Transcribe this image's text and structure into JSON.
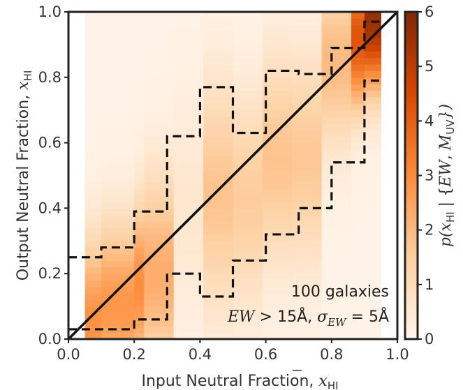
{
  "chart_data": {
    "type": "heatmap",
    "xlabel": {
      "text": "Input Neutral Fraction, ",
      "symbol": "x",
      "subscript": "HI"
    },
    "ylabel": {
      "text": "Output Neutral Fraction, ",
      "symbol": "x",
      "subscript": "HI"
    },
    "colorbar_label": {
      "prefix": "p(",
      "symbol": "x",
      "subscript": "HI",
      "mid": " | {",
      "ew": "EW",
      "comma": ", ",
      "m": "M",
      "msub": "UV",
      "suffix": "})"
    },
    "xlim": [
      0.0,
      1.0
    ],
    "ylim": [
      0.0,
      1.0
    ],
    "clim": [
      0,
      6
    ],
    "x_ticks": [
      "0.0",
      "0.2",
      "0.4",
      "0.6",
      "0.8",
      "1.0"
    ],
    "y_ticks": [
      "0.0",
      "0.2",
      "0.4",
      "0.6",
      "0.8",
      "1.0"
    ],
    "colorbar_ticks": [
      "0",
      "1",
      "2",
      "3",
      "4",
      "5",
      "6"
    ],
    "colormap": [
      "#fff5eb",
      "#fdd0a2",
      "#fd8d3c",
      "#d94801",
      "#7f2704"
    ],
    "annotation_galaxies": "100 galaxies",
    "annotation_condition": {
      "ew": "EW",
      "gt": " > 15Å, ",
      "sigma": "σ",
      "sigsub": "EW",
      "eq": " = 5Å"
    },
    "columns": [
      {
        "x0": 0.05,
        "x1": 0.1,
        "peak": 0.05,
        "width": 0.18,
        "amp": 2.8
      },
      {
        "x0": 0.1,
        "x1": 0.2,
        "peak": 0.1,
        "width": 0.18,
        "amp": 2.7
      },
      {
        "x0": 0.2,
        "x1": 0.23,
        "peak": 0.16,
        "width": 0.18,
        "amp": 2.9
      },
      {
        "x0": 0.23,
        "x1": 0.32,
        "peak": 0.2,
        "width": 0.21,
        "amp": 2.2
      },
      {
        "x0": 0.32,
        "x1": 0.41,
        "peak": 0.4,
        "width": 0.24,
        "amp": 0.5
      },
      {
        "x0": 0.41,
        "x1": 0.5,
        "peak": 0.44,
        "width": 0.24,
        "amp": 1.7
      },
      {
        "x0": 0.5,
        "x1": 0.59,
        "peak": 0.43,
        "width": 0.22,
        "amp": 1.5
      },
      {
        "x0": 0.59,
        "x1": 0.68,
        "peak": 0.55,
        "width": 0.22,
        "amp": 1.7
      },
      {
        "x0": 0.68,
        "x1": 0.77,
        "peak": 0.55,
        "width": 0.22,
        "amp": 1.6
      },
      {
        "x0": 0.77,
        "x1": 0.86,
        "peak": 0.85,
        "width": 0.18,
        "amp": 1.9
      },
      {
        "x0": 0.86,
        "x1": 0.9,
        "peak": 0.92,
        "width": 0.15,
        "amp": 4.2
      },
      {
        "x0": 0.9,
        "x1": 0.95,
        "peak": 0.98,
        "width": 0.15,
        "amp": 5.5
      }
    ],
    "series": [
      {
        "name": "upper-bound",
        "style": "dashed",
        "x": [
          0.0,
          0.05,
          0.05,
          0.1,
          0.1,
          0.2,
          0.2,
          0.3,
          0.3,
          0.4,
          0.4,
          0.5,
          0.5,
          0.6,
          0.6,
          0.7,
          0.7,
          0.8,
          0.8,
          0.9,
          0.9,
          0.95
        ],
        "y": [
          0.25,
          0.25,
          0.25,
          0.25,
          0.28,
          0.28,
          0.39,
          0.39,
          0.62,
          0.62,
          0.77,
          0.77,
          0.63,
          0.63,
          0.82,
          0.82,
          0.81,
          0.81,
          0.89,
          0.89,
          0.97,
          0.97
        ]
      },
      {
        "name": "lower-bound",
        "style": "dashed",
        "x": [
          0.0,
          0.05,
          0.05,
          0.1,
          0.1,
          0.2,
          0.2,
          0.3,
          0.3,
          0.4,
          0.4,
          0.5,
          0.5,
          0.6,
          0.6,
          0.7,
          0.7,
          0.8,
          0.8,
          0.9,
          0.9,
          0.95
        ],
        "y": [
          0.03,
          0.03,
          0.03,
          0.03,
          0.03,
          0.03,
          0.06,
          0.06,
          0.2,
          0.2,
          0.13,
          0.13,
          0.24,
          0.24,
          0.32,
          0.32,
          0.4,
          0.4,
          0.54,
          0.54,
          0.79,
          0.79
        ]
      },
      {
        "name": "one-to-one",
        "style": "solid",
        "x": [
          0.0,
          1.0
        ],
        "y": [
          0.0,
          1.0
        ]
      }
    ]
  }
}
